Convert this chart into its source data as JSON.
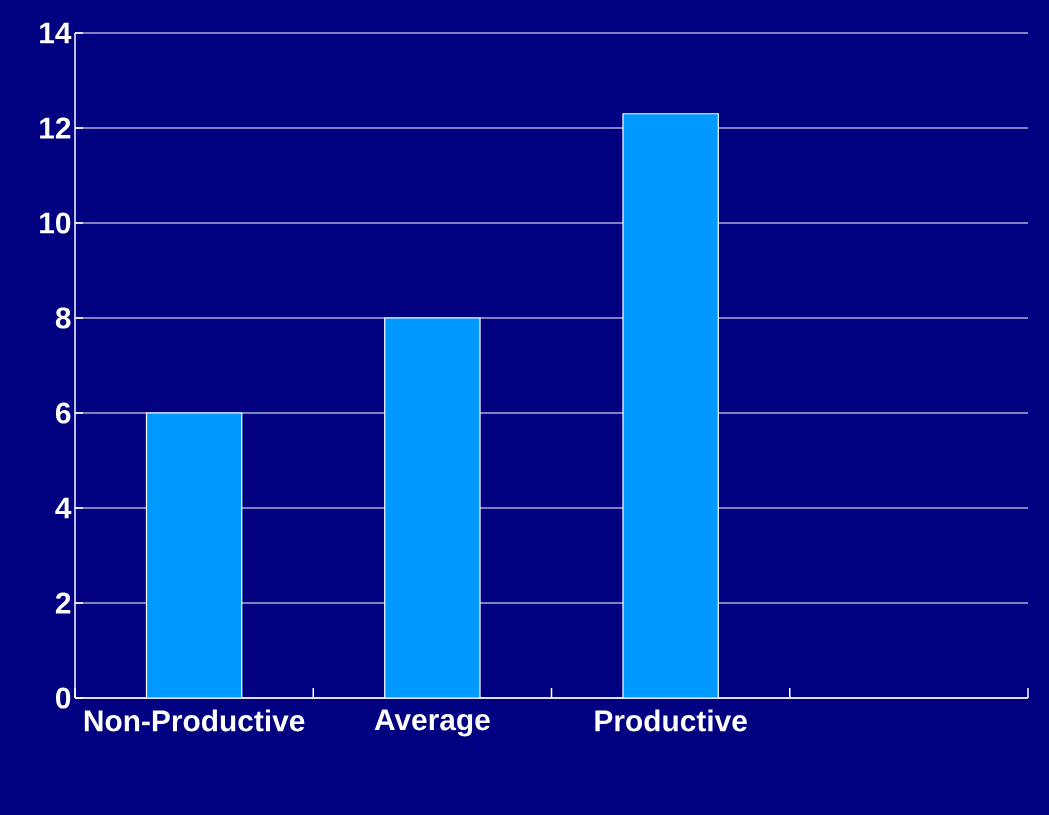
{
  "chart_data": {
    "type": "bar",
    "categories": [
      "Non-Productive",
      "Average",
      "Productive",
      null
    ],
    "values": [
      6,
      8,
      12.3,
      null
    ],
    "color": "#0099ff",
    "ylim": [
      0,
      14
    ],
    "yticks": [
      0,
      2,
      4,
      6,
      8,
      10,
      12,
      14
    ],
    "grid": "y"
  }
}
